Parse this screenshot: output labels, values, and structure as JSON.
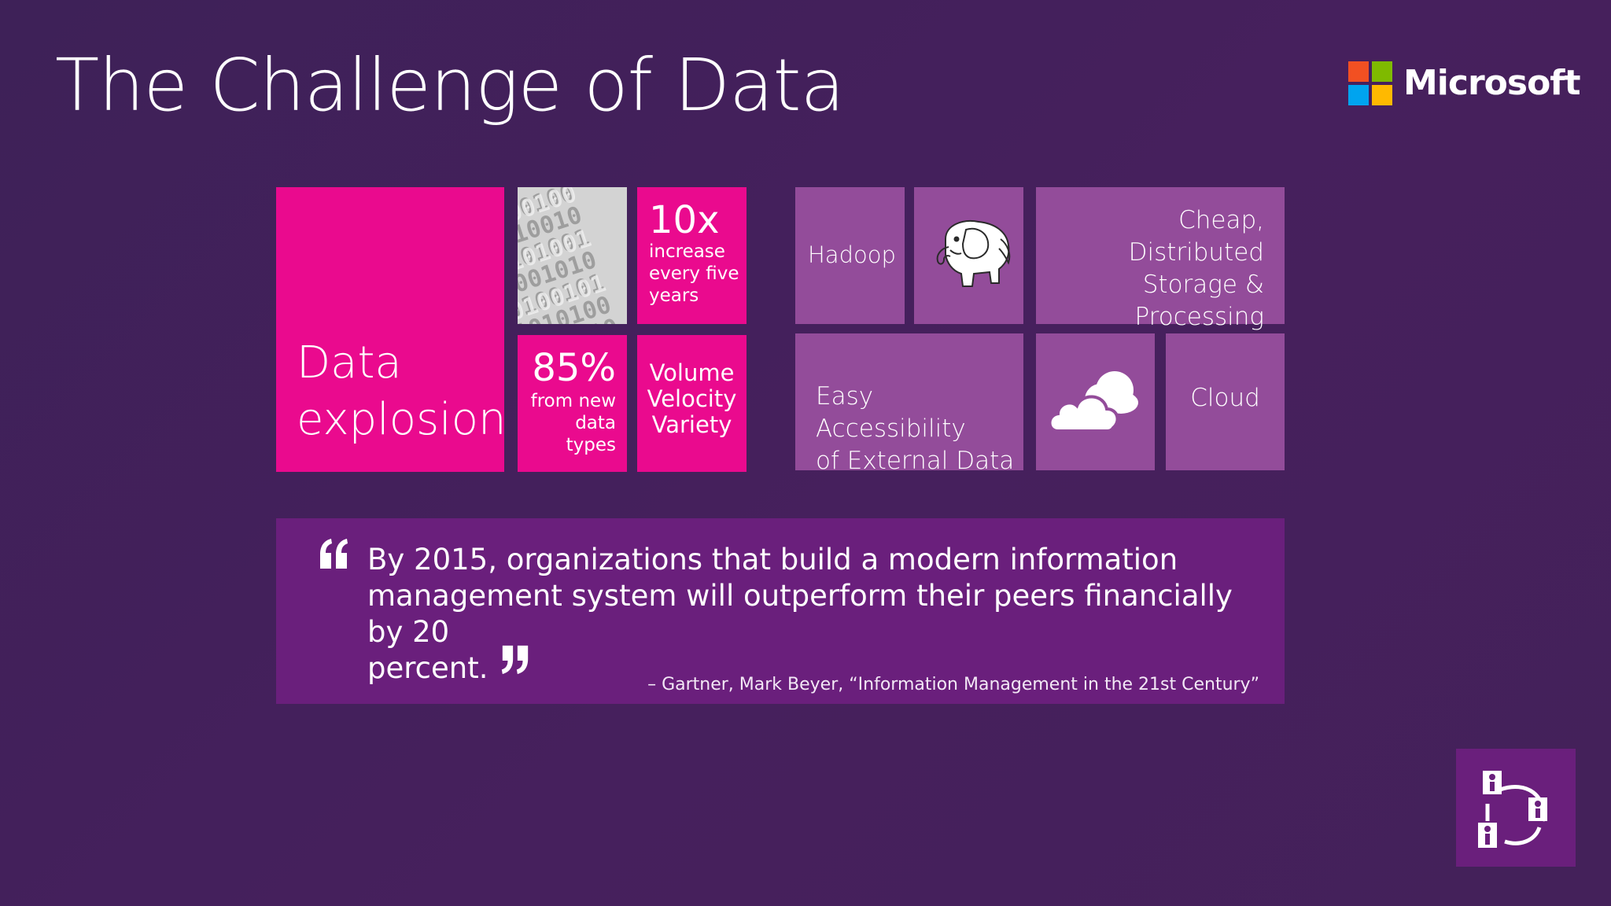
{
  "slide": {
    "title": "The Challenge of Data",
    "brand": {
      "name": "Microsoft",
      "logo_colors": [
        "#f25022",
        "#7fba00",
        "#00a4ef",
        "#ffb900"
      ]
    },
    "colors": {
      "background": "#44215a",
      "pink_tile": "#ea0a8e",
      "violet_tile": "#934c9a",
      "quote_box": "#6a1f7c"
    }
  },
  "tiles": {
    "data_explosion": {
      "line1": "Data",
      "line2": "explosion"
    },
    "binary": {
      "icon": "binary-digits-image"
    },
    "growth": {
      "value": "10x",
      "line1": "increase",
      "line2": "every five",
      "line3": "years"
    },
    "new_types": {
      "value": "85%",
      "line1": "from new",
      "line2": "data",
      "line3": "types"
    },
    "vvv": {
      "line1": "Volume",
      "line2": "Velocity",
      "line3": "Variety"
    },
    "hadoop": {
      "label": "Hadoop"
    },
    "elephant": {
      "icon": "hadoop-elephant-icon"
    },
    "cheap": {
      "line1": "Cheap, Distributed",
      "line2": "Storage &",
      "line3": "Processing"
    },
    "easy": {
      "line1": "Easy Accessibility",
      "line2": "of External Data"
    },
    "cloud_icon": {
      "icon": "cloud-icon"
    },
    "cloud": {
      "label": "Cloud"
    }
  },
  "quote": {
    "line1": "By 2015, organizations that build a modern information",
    "line2": "management system will outperform their peers financially by 20",
    "line3": "percent.",
    "attribution": "– Gartner, Mark Beyer, “Information Management in the 21st Century”"
  },
  "corner": {
    "icon": "people-network-icon"
  }
}
